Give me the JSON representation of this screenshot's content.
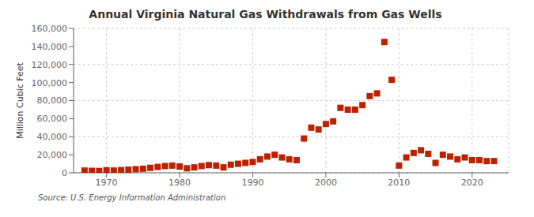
{
  "chart_data": {
    "type": "scatter",
    "title": "Annual Virginia Natural Gas Withdrawals from Gas Wells",
    "ylabel": "Million Cubic Feet",
    "annotations": [
      "Source: U.S. Energy Information Administration"
    ],
    "x": [
      1967,
      1968,
      1969,
      1970,
      1971,
      1972,
      1973,
      1974,
      1975,
      1976,
      1977,
      1978,
      1979,
      1980,
      1981,
      1982,
      1983,
      1984,
      1985,
      1986,
      1987,
      1988,
      1989,
      1990,
      1991,
      1992,
      1993,
      1994,
      1995,
      1996,
      1997,
      1998,
      1999,
      2000,
      2001,
      2002,
      2003,
      2004,
      2005,
      2006,
      2007,
      2008,
      2009,
      2010,
      2011,
      2012,
      2013,
      2014,
      2015,
      2016,
      2017,
      2018,
      2019,
      2020,
      2021,
      2022,
      2023
    ],
    "values": [
      2500,
      2200,
      2000,
      2800,
      2500,
      3000,
      3500,
      4000,
      4500,
      5500,
      6500,
      7500,
      8000,
      7000,
      5000,
      6000,
      7500,
      8500,
      8000,
      6000,
      9000,
      10000,
      11000,
      12000,
      15000,
      18000,
      20000,
      17000,
      15000,
      14000,
      38000,
      50000,
      48000,
      54000,
      57000,
      72000,
      70000,
      70000,
      75000,
      85000,
      88000,
      145000,
      103000,
      8000,
      17000,
      22000,
      25000,
      21000,
      11000,
      20000,
      18000,
      15000,
      17000,
      14000,
      14000,
      13000,
      13000
    ],
    "color": "#bb2200",
    "marker": "square",
    "xlim": [
      1965.5,
      2025
    ],
    "xticks": [
      1970,
      1980,
      1990,
      2000,
      2010,
      2020
    ],
    "ylim": [
      0,
      160000
    ],
    "yticks": [
      0,
      {
        "value": 20000,
        "label": "20,000"
      },
      {
        "value": 40000,
        "label": "40,000"
      },
      {
        "value": 60000,
        "label": "60,000"
      },
      {
        "value": 80000,
        "label": "80,000"
      },
      {
        "value": 100000,
        "label": "100,000"
      },
      {
        "value": 120000,
        "label": "120,000"
      },
      {
        "value": 140000,
        "label": "140,000"
      },
      {
        "value": 160000,
        "label": "160,000"
      }
    ],
    "grid": true
  }
}
